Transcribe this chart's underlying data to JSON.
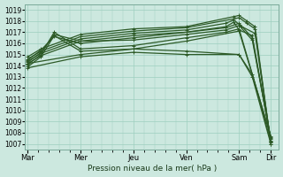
{
  "xlabel": "Pression niveau de la mer( hPa )",
  "ylim": [
    1006.5,
    1019.5
  ],
  "yticks": [
    1007,
    1008,
    1009,
    1010,
    1011,
    1012,
    1013,
    1014,
    1015,
    1016,
    1017,
    1018,
    1019
  ],
  "xtick_labels": [
    "Mar",
    "Mer",
    "Jeu",
    "Ven",
    "Sam",
    "Dir"
  ],
  "xtick_positions": [
    0.0,
    2.0,
    4.0,
    6.0,
    8.0,
    9.2
  ],
  "background_color": "#cce8df",
  "grid_color": "#9ecfbf",
  "line_color": "#2d5a27",
  "xlim": [
    -0.1,
    9.5
  ],
  "series": [
    {
      "x": [
        0.0,
        0.5,
        2.0,
        4.0,
        6.0,
        7.8,
        8.0,
        8.3,
        8.6,
        9.2
      ],
      "y": [
        1014.8,
        1015.5,
        1016.8,
        1017.3,
        1017.5,
        1018.4,
        1018.5,
        1018.0,
        1017.5,
        1007.1
      ]
    },
    {
      "x": [
        0.0,
        0.5,
        2.0,
        4.0,
        6.0,
        7.8,
        8.0,
        8.3,
        8.6,
        9.2
      ],
      "y": [
        1014.6,
        1015.3,
        1016.6,
        1017.1,
        1017.4,
        1018.2,
        1018.3,
        1017.8,
        1017.3,
        1007.0
      ]
    },
    {
      "x": [
        0.0,
        0.5,
        2.0,
        4.0,
        6.0,
        7.5,
        7.8,
        8.1,
        8.6,
        9.2
      ],
      "y": [
        1014.4,
        1015.1,
        1016.4,
        1016.9,
        1017.2,
        1017.8,
        1018.1,
        1017.5,
        1016.9,
        1007.2
      ]
    },
    {
      "x": [
        0.0,
        0.5,
        2.0,
        4.0,
        6.0,
        7.5,
        7.8,
        8.0,
        8.5,
        9.2
      ],
      "y": [
        1014.2,
        1014.9,
        1016.2,
        1016.7,
        1017.0,
        1017.5,
        1017.9,
        1017.2,
        1016.7,
        1007.3
      ]
    },
    {
      "x": [
        0.0,
        0.5,
        1.0,
        2.0,
        4.0,
        6.0,
        7.5,
        8.0,
        8.5,
        9.2
      ],
      "y": [
        1014.5,
        1015.4,
        1016.6,
        1016.0,
        1016.5,
        1017.0,
        1017.4,
        1017.8,
        1016.5,
        1007.4
      ]
    },
    {
      "x": [
        0.0,
        0.5,
        1.0,
        2.0,
        4.0,
        6.0,
        7.5,
        8.0,
        8.5,
        9.2
      ],
      "y": [
        1014.3,
        1015.2,
        1016.8,
        1016.2,
        1016.3,
        1016.8,
        1017.2,
        1017.6,
        1016.3,
        1007.5
      ]
    },
    {
      "x": [
        0.0,
        0.5,
        1.0,
        2.0,
        4.0,
        6.0,
        7.5,
        8.0,
        9.2
      ],
      "y": [
        1014.1,
        1015.0,
        1017.0,
        1015.5,
        1015.8,
        1016.5,
        1017.0,
        1017.3,
        1007.6
      ]
    },
    {
      "x": [
        0.0,
        0.5,
        1.0,
        2.0,
        4.0,
        6.0,
        8.0,
        9.2
      ],
      "y": [
        1013.9,
        1014.8,
        1016.7,
        1015.3,
        1015.5,
        1016.2,
        1017.1,
        1007.7
      ]
    },
    {
      "x": [
        0.0,
        2.0,
        4.0,
        6.0,
        8.0,
        8.5,
        9.2
      ],
      "y": [
        1014.2,
        1015.0,
        1015.5,
        1015.3,
        1015.0,
        1013.2,
        1007.2
      ]
    },
    {
      "x": [
        0.0,
        2.0,
        4.0,
        6.0,
        8.0,
        8.5,
        9.2
      ],
      "y": [
        1013.8,
        1014.8,
        1015.2,
        1015.0,
        1015.0,
        1013.0,
        1007.0
      ]
    }
  ]
}
